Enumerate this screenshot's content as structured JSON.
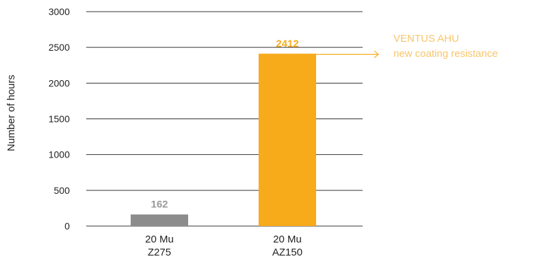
{
  "chart_data": {
    "type": "bar",
    "title": "",
    "xlabel": "",
    "ylabel": "Number of hours",
    "ylim": [
      0,
      3000
    ],
    "yticks": [
      0,
      500,
      1000,
      1500,
      2000,
      2500,
      3000
    ],
    "grid": true,
    "categories": [
      {
        "line1": "20 Mu",
        "line2": "Z275"
      },
      {
        "line1": "20 Mu",
        "line2": "AZ150"
      }
    ],
    "values": [
      162,
      2412
    ],
    "data_labels": [
      "162",
      "2412"
    ],
    "colors": [
      "#8c8c8c",
      "#f7ab1b"
    ],
    "label_colors": [
      "#9a9a9a",
      "#f7ab1b"
    ],
    "annotation": {
      "line1": "VENTUS AHU",
      "line2": "new coating resistance",
      "color": "#f9c56a",
      "arrow_color": "#f7ab1b",
      "target_category": 1
    }
  }
}
